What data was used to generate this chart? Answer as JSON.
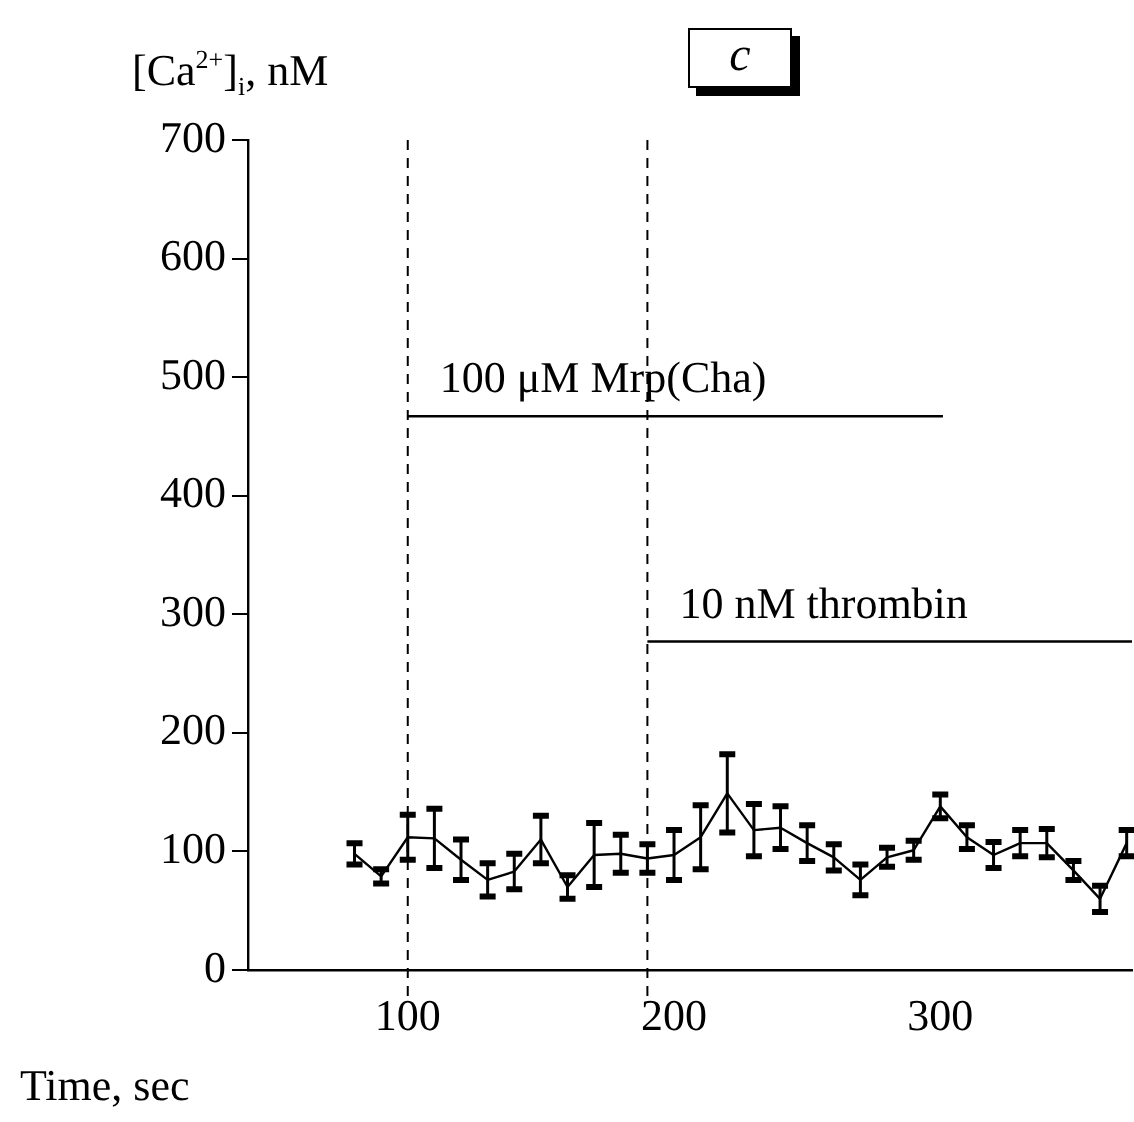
{
  "chart_data": {
    "type": "line",
    "title": "c",
    "xlabel": "Time, sec",
    "ylabel": "[Ca$^{2+}$]$_{i}$, nM",
    "xlim": [
      40,
      372
    ],
    "xticks": [
      100,
      200,
      300
    ],
    "ylim": [
      0,
      700
    ],
    "yticks": [
      0,
      100,
      200,
      300,
      400,
      500,
      600,
      700
    ],
    "grid": false,
    "legend": false,
    "marker": "none",
    "line_style": "solid",
    "series": [
      {
        "color": "#000000",
        "x": [
          80,
          90,
          100,
          110,
          120,
          130,
          140,
          150,
          160,
          170,
          180,
          190,
          200,
          210,
          220,
          230,
          240,
          250,
          260,
          270,
          280,
          290,
          300,
          310,
          320,
          330,
          340,
          350,
          360,
          370
        ],
        "values": [
          98,
          79,
          112,
          111,
          93,
          76,
          83,
          110,
          70,
          97,
          98,
          94,
          97,
          112,
          149,
          118,
          120,
          107,
          95,
          76,
          95,
          101,
          138,
          112,
          97,
          107,
          107,
          84,
          60,
          107
        ],
        "errors": [
          9,
          6,
          19,
          25,
          17,
          14,
          15,
          20,
          10,
          27,
          16,
          12,
          21,
          27,
          33,
          22,
          18,
          15,
          11,
          13,
          8,
          8,
          10,
          10,
          11,
          11,
          12,
          8,
          11,
          11
        ]
      },
      {
        "type": "line",
        "color": "#000000",
        "x": [
          100,
          301
        ],
        "values": [
          467,
          467
        ]
      },
      {
        "type": "line",
        "color": "#000000",
        "x": [
          190,
          372
        ],
        "values": [
          277,
          277
        ]
      }
    ],
    "ref_lines": [
      {
        "axis": "x",
        "value": 100,
        "color": "#000000",
        "line_style": "dashed"
      },
      {
        "axis": "x",
        "value": 190,
        "color": "#000000",
        "line_style": "dashed"
      }
    ],
    "annotations": [
      {
        "text": "100 μM Mrp(Cha)",
        "x": 100,
        "y": 467
      },
      {
        "text": "10 nM thrombin",
        "x": 190,
        "y": 277
      }
    ]
  }
}
